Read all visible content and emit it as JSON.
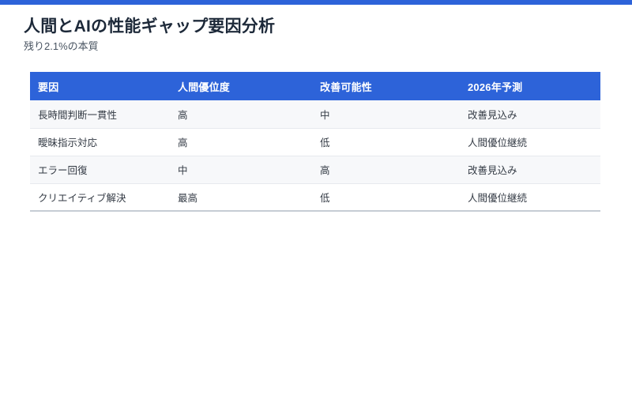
{
  "page": {
    "title": "人間とAIの性能ギャップ要因分析",
    "subtitle": "残り2.1%の本質"
  },
  "colors": {
    "accent_blue": "#2d63d9",
    "title_text": "#1d2939",
    "subtitle_text": "#4a5562",
    "cell_text": "#333a44",
    "header_text": "#ffffff",
    "row_alt_bg": "#f7f8fa",
    "row_divider": "#e7e9ee",
    "table_bottom_border": "#c6ccd4"
  },
  "table": {
    "headers": [
      "要因",
      "人間優位度",
      "改善可能性",
      "2026年予測"
    ],
    "rows": [
      [
        "長時間判断一貫性",
        "高",
        "中",
        "改善見込み"
      ],
      [
        "曖昧指示対応",
        "高",
        "低",
        "人間優位継続"
      ],
      [
        "エラー回復",
        "中",
        "高",
        "改善見込み"
      ],
      [
        "クリエイティブ解決",
        "最高",
        "低",
        "人間優位継続"
      ]
    ]
  }
}
